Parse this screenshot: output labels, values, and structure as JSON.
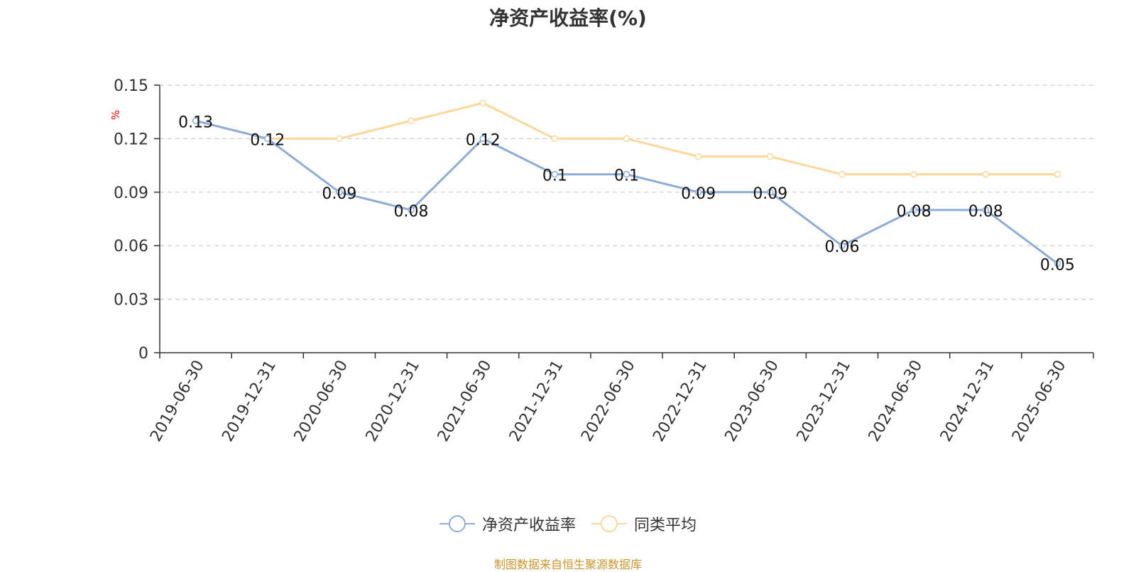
{
  "title": "净资产收益率(%)",
  "footer": "制图数据来自恒生聚源数据库",
  "colors": {
    "series_main": "#8eadd6",
    "series_avg": "#fad89a",
    "axis": "#333333",
    "grid": "#cccccc",
    "unit": "#ff0000",
    "footer": "#c8962c"
  },
  "chart_data": {
    "type": "line",
    "title": "净资产收益率(%)",
    "ylabel": "%",
    "xlabel": "",
    "ylim": [
      0,
      0.15
    ],
    "yticks": [
      "0",
      "0.03",
      "0.06",
      "0.09",
      "0.12",
      "0.15"
    ],
    "grid": true,
    "legend_position": "bottom",
    "categories": [
      "2019-06-30",
      "2019-12-31",
      "2020-06-30",
      "2020-12-31",
      "2021-06-30",
      "2021-12-31",
      "2022-06-30",
      "2022-12-31",
      "2023-06-30",
      "2023-12-31",
      "2024-06-30",
      "2024-12-31",
      "2025-06-30"
    ],
    "series": [
      {
        "name": "净资产收益率",
        "values": [
          0.13,
          0.12,
          0.09,
          0.08,
          0.12,
          0.1,
          0.1,
          0.09,
          0.09,
          0.06,
          0.08,
          0.08,
          0.05
        ],
        "labels": [
          "0.13",
          "0.12",
          "0.09",
          "0.08",
          "0.12",
          "0.1",
          "0.1",
          "0.09",
          "0.09",
          "0.06",
          "0.08",
          "0.08",
          "0.05"
        ]
      },
      {
        "name": "同类平均",
        "values": [
          0.13,
          0.12,
          0.12,
          0.13,
          0.14,
          0.12,
          0.12,
          0.11,
          0.11,
          0.1,
          0.1,
          0.1,
          0.1
        ]
      }
    ]
  }
}
